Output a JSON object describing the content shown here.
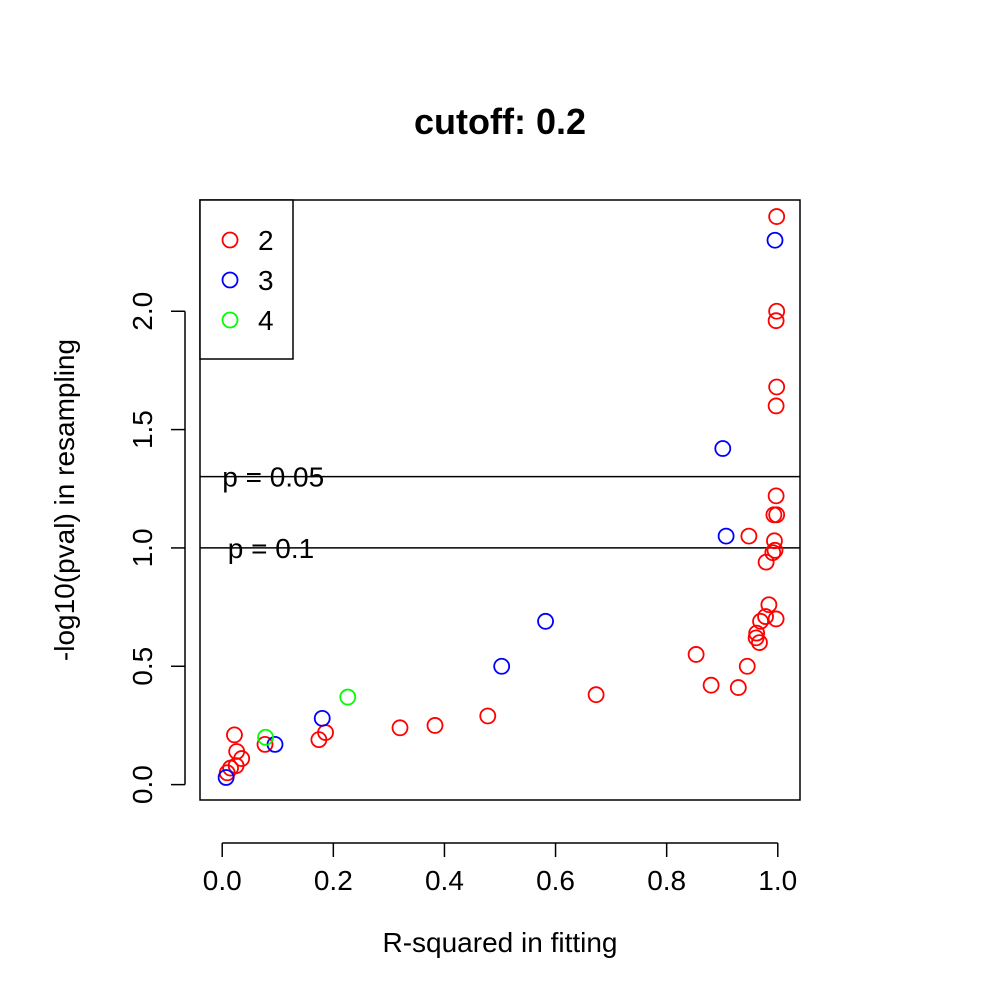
{
  "chart_data": {
    "type": "scatter",
    "title": "cutoff: 0.2",
    "xlabel": "R-squared in fitting",
    "ylabel": "-log10(pval) in resampling",
    "xlim": [
      -0.04,
      1.04
    ],
    "ylim": [
      -0.065,
      2.47
    ],
    "x_ticks": [
      0.0,
      0.2,
      0.4,
      0.6,
      0.8,
      1.0
    ],
    "x_tick_labels": [
      "0.0",
      "0.2",
      "0.4",
      "0.6",
      "0.8",
      "1.0"
    ],
    "y_ticks": [
      0.0,
      0.5,
      1.0,
      1.5,
      2.0
    ],
    "y_tick_labels": [
      "0.0",
      "0.5",
      "1.0",
      "1.5",
      "2.0"
    ],
    "grid": false,
    "legend_position": "top-left",
    "reference_lines": [
      {
        "y": 1.301,
        "label": "p = 0.05",
        "label_x": 0.0
      },
      {
        "y": 1.0,
        "label": "p = 0.1",
        "label_x": 0.01
      }
    ],
    "series": [
      {
        "name": "2",
        "color": "#ff0000",
        "points": [
          [
            0.998,
            2.4
          ],
          [
            0.998,
            2.0
          ],
          [
            0.997,
            1.96
          ],
          [
            0.998,
            1.68
          ],
          [
            0.997,
            1.6
          ],
          [
            0.997,
            1.22
          ],
          [
            0.993,
            1.14
          ],
          [
            0.998,
            1.14
          ],
          [
            0.994,
            1.03
          ],
          [
            0.995,
            0.99
          ],
          [
            0.991,
            0.98
          ],
          [
            0.948,
            1.05
          ],
          [
            0.979,
            0.94
          ],
          [
            0.984,
            0.76
          ],
          [
            0.997,
            0.7
          ],
          [
            0.978,
            0.71
          ],
          [
            0.969,
            0.69
          ],
          [
            0.962,
            0.64
          ],
          [
            0.961,
            0.62
          ],
          [
            0.967,
            0.6
          ],
          [
            0.945,
            0.5
          ],
          [
            0.853,
            0.55
          ],
          [
            0.88,
            0.42
          ],
          [
            0.929,
            0.41
          ],
          [
            0.673,
            0.38
          ],
          [
            0.478,
            0.29
          ],
          [
            0.383,
            0.25
          ],
          [
            0.32,
            0.24
          ],
          [
            0.186,
            0.22
          ],
          [
            0.174,
            0.19
          ],
          [
            0.077,
            0.17
          ],
          [
            0.022,
            0.21
          ],
          [
            0.026,
            0.14
          ],
          [
            0.035,
            0.11
          ],
          [
            0.025,
            0.08
          ],
          [
            0.015,
            0.07
          ],
          [
            0.009,
            0.05
          ]
        ]
      },
      {
        "name": "3",
        "color": "#0000ff",
        "points": [
          [
            0.995,
            2.3
          ],
          [
            0.901,
            1.42
          ],
          [
            0.907,
            1.05
          ],
          [
            0.582,
            0.69
          ],
          [
            0.503,
            0.5
          ],
          [
            0.18,
            0.28
          ],
          [
            0.095,
            0.17
          ],
          [
            0.007,
            0.03
          ]
        ]
      },
      {
        "name": "4",
        "color": "#00ff00",
        "points": [
          [
            0.226,
            0.37
          ],
          [
            0.078,
            0.2
          ]
        ]
      }
    ]
  }
}
